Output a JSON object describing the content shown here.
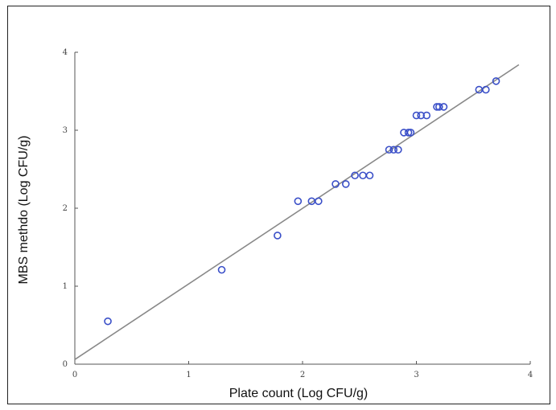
{
  "chart_data": {
    "type": "scatter",
    "title": "",
    "xlabel": "Plate count (Log CFU/g)",
    "ylabel": "MBS methdo (Log CFU/g)",
    "xlim": [
      0,
      4
    ],
    "ylim": [
      0,
      4
    ],
    "xticks": [
      "0",
      "1",
      "2",
      "3",
      "4"
    ],
    "yticks": [
      "0",
      "1",
      "2",
      "3",
      "4"
    ],
    "grid": false,
    "legend": "none",
    "point_color": "#3a4fc8",
    "line_color": "#888888",
    "fit_line": {
      "x": [
        0,
        3.9
      ],
      "y": [
        0.06,
        3.84
      ]
    },
    "points": [
      {
        "x": 0.29,
        "y": 0.55
      },
      {
        "x": 1.29,
        "y": 1.21
      },
      {
        "x": 1.78,
        "y": 1.65
      },
      {
        "x": 1.96,
        "y": 2.09
      },
      {
        "x": 2.08,
        "y": 2.09
      },
      {
        "x": 2.14,
        "y": 2.09
      },
      {
        "x": 2.29,
        "y": 2.31
      },
      {
        "x": 2.38,
        "y": 2.31
      },
      {
        "x": 2.46,
        "y": 2.42
      },
      {
        "x": 2.53,
        "y": 2.42
      },
      {
        "x": 2.59,
        "y": 2.42
      },
      {
        "x": 2.76,
        "y": 2.75
      },
      {
        "x": 2.8,
        "y": 2.75
      },
      {
        "x": 2.84,
        "y": 2.75
      },
      {
        "x": 2.89,
        "y": 2.97
      },
      {
        "x": 2.93,
        "y": 2.97
      },
      {
        "x": 2.95,
        "y": 2.97
      },
      {
        "x": 3.0,
        "y": 3.19
      },
      {
        "x": 3.04,
        "y": 3.19
      },
      {
        "x": 3.09,
        "y": 3.19
      },
      {
        "x": 3.18,
        "y": 3.3
      },
      {
        "x": 3.2,
        "y": 3.3
      },
      {
        "x": 3.24,
        "y": 3.3
      },
      {
        "x": 3.55,
        "y": 3.52
      },
      {
        "x": 3.61,
        "y": 3.52
      },
      {
        "x": 3.7,
        "y": 3.63
      }
    ]
  }
}
